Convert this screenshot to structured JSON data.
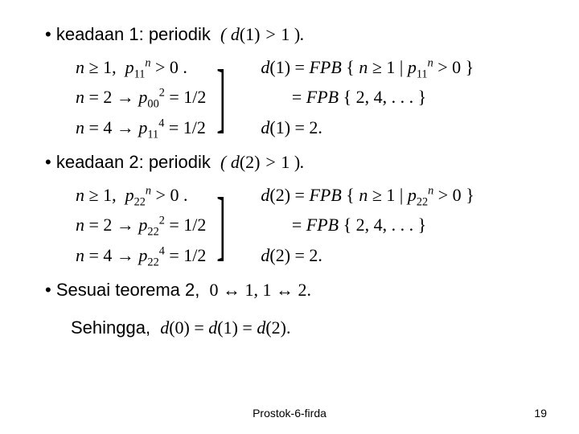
{
  "section1": {
    "bullet_text": "keadaan 1: periodik",
    "cond": "( d(1) > 1 ).",
    "left_line1": "n ≥ 1,  p₁₁ⁿ > 0 .",
    "left_line2": "n = 2 → p₀₀² = 1/2",
    "left_line3": "n = 4 → p₁₁⁴ = 1/2",
    "right_line1": "d(1) = FPB { n ≥ 1 | p₁₁ⁿ > 0 }",
    "right_line2": "       = FPB { 2, 4, . . . }",
    "right_line3": "d(1) = 2."
  },
  "section2": {
    "bullet_text": "keadaan 2: periodik",
    "cond": "( d(2) > 1 ).",
    "left_line1": "n ≥ 1,  p₂₂ⁿ > 0 .",
    "left_line2": "n = 2 → p₂₂² = 1/2",
    "left_line3": "n = 4 → p₂₂⁴ = 1/2",
    "right_line1": "d(2) = FPB { n ≥ 1 | p₂₂ⁿ > 0 }",
    "right_line2": "       = FPB { 2, 4, . . . }",
    "right_line3": "d(2) = 2."
  },
  "section3": {
    "bullet_text": "Sesuai teorema 2,",
    "cond": "0 ↔ 1, 1 ↔ 2.",
    "sehingga_label": "Sehingga,",
    "sehingga_math": "d(0) = d(1) = d(2)."
  },
  "footer": {
    "text": "Prostok-6-firda",
    "page": "19"
  }
}
